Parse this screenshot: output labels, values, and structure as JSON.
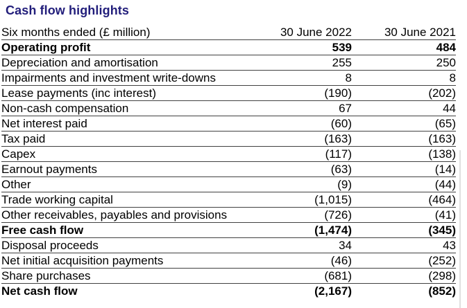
{
  "title": "Cash flow highlights",
  "table": {
    "header": {
      "label": "Six months ended (£ million)",
      "col_2022": "30 June 2022",
      "col_2021": "30 June 2021"
    },
    "rows": [
      {
        "label": "Operating profit",
        "v2022": "539",
        "v2021": "484",
        "bold": true
      },
      {
        "label": "Depreciation and amortisation",
        "v2022": "255",
        "v2021": "250",
        "bold": false
      },
      {
        "label": "Impairments and investment write-downs",
        "v2022": "8",
        "v2021": "8",
        "bold": false
      },
      {
        "label": "Lease payments (inc interest)",
        "v2022": "(190)",
        "v2021": "(202)",
        "bold": false
      },
      {
        "label": "Non-cash compensation",
        "v2022": "67",
        "v2021": "44",
        "bold": false
      },
      {
        "label": "Net interest paid",
        "v2022": "(60)",
        "v2021": "(65)",
        "bold": false
      },
      {
        "label": "Tax paid",
        "v2022": "(163)",
        "v2021": "(163)",
        "bold": false
      },
      {
        "label": "Capex",
        "v2022": "(117)",
        "v2021": "(138)",
        "bold": false
      },
      {
        "label": "Earnout payments",
        "v2022": "(63)",
        "v2021": "(14)",
        "bold": false
      },
      {
        "label": "Other",
        "v2022": "(9)",
        "v2021": "(44)",
        "bold": false
      },
      {
        "label": "Trade working capital",
        "v2022": "(1,015)",
        "v2021": "(464)",
        "bold": false
      },
      {
        "label": "Other receivables, payables and provisions",
        "v2022": "(726)",
        "v2021": "(41)",
        "bold": false
      },
      {
        "label": "Free cash flow",
        "v2022": "(1,474)",
        "v2021": "(345)",
        "bold": true
      },
      {
        "label": "Disposal proceeds",
        "v2022": "34",
        "v2021": "43",
        "bold": false
      },
      {
        "label": "Net initial acquisition payments",
        "v2022": "(46)",
        "v2021": "(252)",
        "bold": false
      },
      {
        "label": "Share purchases",
        "v2022": "(681)",
        "v2021": "(298)",
        "bold": false
      },
      {
        "label": "Net cash flow",
        "v2022": "(2,167)",
        "v2021": "(852)",
        "bold": true
      }
    ]
  },
  "colors": {
    "title": "#221E7B",
    "text": "#000000",
    "row_rule": "#404040",
    "page_edge": "#E0E0E0",
    "background": "#FFFFFF"
  }
}
